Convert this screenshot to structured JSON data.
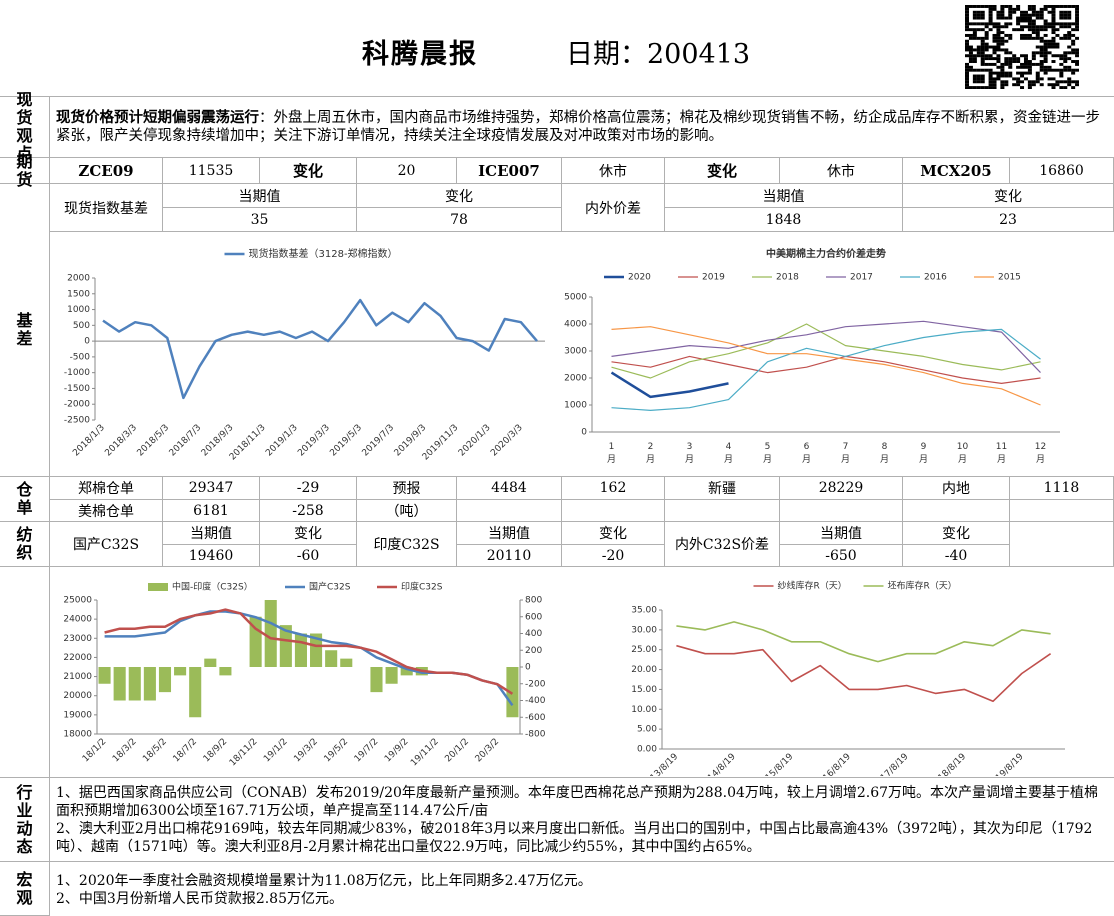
{
  "header": {
    "title": "科腾晨报",
    "date": "日期：200413"
  },
  "spot_view": {
    "label": "现货观点",
    "heading": "现货价格预计短期偏弱震荡运行",
    "text": "：外盘上周五休市，国内商品市场维持强势，郑棉价格高位震荡；棉花及棉纱现货销售不畅，纺企成品库存不断积累，资金链进一步紧张，限产关停现象持续增加中；关注下游订单情况，持续关注全球疫情发展及对冲政策对市场的影响。"
  },
  "futures": {
    "label": "期货",
    "cells": [
      "ZCE09",
      11535,
      "变化",
      20,
      "ICE007",
      "休市",
      "变化",
      "休市",
      "MCX205",
      16860
    ]
  },
  "basis_table": {
    "cells": [
      "现货指数基差",
      "当期值",
      35,
      "变化",
      78,
      "内外价差",
      "当期值",
      1848,
      "变化",
      23
    ]
  },
  "basis_label": "基差",
  "warehouse": {
    "label": "仓单",
    "rows": [
      [
        "郑棉仓单",
        29347,
        -29,
        "预报",
        4484,
        162,
        "新疆",
        28229,
        "内地",
        1118
      ],
      [
        "美棉仓单",
        6181,
        -258,
        "（吨）"
      ]
    ]
  },
  "textile": {
    "label": "纺织",
    "cells": [
      "国产C32S",
      "当期值",
      19460,
      "变化",
      -60,
      "印度C32S",
      "当期值",
      20110,
      "变化",
      -20,
      "内外C32S价差",
      "当期值",
      -650,
      "变化",
      -40
    ]
  },
  "industry": {
    "label": "行业动态",
    "paragraphs": [
      "1、据巴西国家商品供应公司（CONAB）发布2019/20年度最新产量预测。本年度巴西棉花总产预期为288.04万吨，较上月调增2.67万吨。本次产量调增主要基于植棉面积预期增加6300公顷至167.71万公顷，单产提高至114.47公斤/亩",
      "2、澳大利亚2月出口棉花9169吨，较去年同期减少83%，破2018年3月以来月度出口新低。当月出口的国别中，中国占比最高逾43%（3972吨），其次为印尼（1792吨）、越南（1571吨）等。澳大利亚8月-2月累计棉花出口量仅22.9万吨，同比减少约55%，其中中国约占65%。"
    ]
  },
  "macro": {
    "label": "宏观",
    "paragraphs": [
      "1、2020年一季度社会融资规模增量累计为11.08万亿元，比上年同期多2.47万亿元。",
      "2、中国3月份新增人民币贷款报2.85万亿元。"
    ]
  },
  "charts": [
    {
      "type": "line",
      "categories": [
        "2018/1/3",
        null,
        "2018/3/3",
        null,
        "2018/5/3",
        null,
        "2018/7/3",
        null,
        "2018/9/3",
        null,
        "2018/11/3",
        null,
        "2019/1/3",
        null,
        "2019/3/3",
        null,
        "2019/5/3",
        null,
        "2019/7/3",
        null,
        "2019/9/3",
        null,
        "2019/11/3",
        null,
        "2020/1/3",
        null,
        "2020/3/3",
        null
      ],
      "series": [
        {
          "name": "现货指数基差（3128-郑棉指数）",
          "color": "#4f81bd",
          "values": [
            650,
            300,
            600,
            500,
            100,
            -1800,
            -800,
            0,
            200,
            300,
            200,
            300,
            100,
            300,
            0,
            600,
            1300,
            500,
            900,
            600,
            1200,
            800,
            100,
            0,
            -300,
            700,
            600,
            0
          ]
        }
      ],
      "ylim": [
        -2500,
        2000
      ],
      "yticks": [
        -2500,
        -2000,
        -1500,
        -1000,
        -500,
        0,
        500,
        1000,
        1500,
        2000
      ]
    },
    {
      "type": "line",
      "title": "中美期棉主力合约价差走势",
      "categories": [
        "1月",
        "2月",
        "3月",
        "4月",
        "5月",
        "6月",
        "7月",
        "8月",
        "9月",
        "10月",
        "11月",
        "12月"
      ],
      "series": [
        {
          "name": "2020",
          "color": "#1f4e9a",
          "values": [
            2200,
            1300,
            1500,
            1800,
            null,
            null,
            null,
            null,
            null,
            null,
            null,
            null
          ]
        },
        {
          "name": "2019",
          "color": "#c0504d",
          "values": [
            2600,
            2400,
            2800,
            2500,
            2200,
            2400,
            2800,
            2600,
            2300,
            2000,
            1800,
            2000
          ]
        },
        {
          "name": "2018",
          "color": "#9bbb59",
          "values": [
            2400,
            2000,
            2600,
            2900,
            3300,
            4000,
            3200,
            3000,
            2800,
            2500,
            2300,
            2600
          ]
        },
        {
          "name": "2017",
          "color": "#8064a2",
          "values": [
            2800,
            3000,
            3200,
            3100,
            3400,
            3600,
            3900,
            4000,
            4100,
            3900,
            3700,
            2200
          ]
        },
        {
          "name": "2016",
          "color": "#4bacc6",
          "values": [
            900,
            800,
            900,
            1200,
            2600,
            3100,
            2800,
            3200,
            3500,
            3700,
            3800,
            2700
          ]
        },
        {
          "name": "2015",
          "color": "#f79646",
          "values": [
            3800,
            3900,
            3600,
            3300,
            2900,
            2900,
            2700,
            2500,
            2200,
            1800,
            1600,
            1000
          ]
        }
      ],
      "ylim": [
        0,
        5000
      ],
      "yticks": [
        0,
        1000,
        2000,
        3000,
        4000,
        5000
      ]
    },
    {
      "type": "combo",
      "categories": [
        "18/1/2",
        null,
        "18/3/2",
        null,
        "18/5/2",
        null,
        "18/7/2",
        null,
        "18/9/2",
        null,
        "18/11/2",
        null,
        "19/1/2",
        null,
        "19/3/2",
        null,
        "19/5/2",
        null,
        "19/7/2",
        null,
        "19/9/2",
        null,
        "19/11/2",
        null,
        "20/1/2",
        null,
        "20/3/2",
        null
      ],
      "series": [
        {
          "name": "中国-印度（C32S）",
          "type": "bar",
          "axis": "y2",
          "color": "#9bbb59",
          "values": [
            -200,
            -400,
            -400,
            -400,
            -300,
            -100,
            -600,
            100,
            -100,
            0,
            600,
            800,
            500,
            400,
            400,
            200,
            100,
            0,
            -300,
            -200,
            -100,
            -100,
            0,
            0,
            0,
            0,
            0,
            -600
          ]
        },
        {
          "name": "国产C32S",
          "type": "line",
          "color": "#4f81bd",
          "values": [
            23100,
            23100,
            23100,
            23200,
            23300,
            23900,
            24200,
            24400,
            24400,
            24300,
            24100,
            23800,
            23400,
            23200,
            23000,
            22800,
            22700,
            22500,
            22000,
            21700,
            21400,
            21200,
            21200,
            21200,
            21100,
            20800,
            20600,
            19500
          ]
        },
        {
          "name": "印度C32S",
          "type": "line",
          "color": "#c0504d",
          "values": [
            23300,
            23500,
            23500,
            23600,
            23600,
            24000,
            24200,
            24300,
            24500,
            24300,
            23500,
            23000,
            22900,
            22800,
            22600,
            22600,
            22600,
            22500,
            22300,
            21900,
            21500,
            21300,
            21200,
            21200,
            21100,
            20800,
            20600,
            20100
          ]
        }
      ],
      "ylim": [
        18000,
        25000
      ],
      "yticks": [
        18000,
        19000,
        20000,
        21000,
        22000,
        23000,
        24000,
        25000
      ],
      "y2lim": [
        -800,
        800
      ],
      "y2ticks": [
        -800,
        -600,
        -400,
        -200,
        0,
        200,
        400,
        600,
        800
      ]
    },
    {
      "type": "line",
      "categories": [
        "13/8/19",
        null,
        "14/8/19",
        null,
        "15/8/19",
        null,
        "16/8/19",
        null,
        "17/8/19",
        null,
        "18/8/19",
        null,
        "19/8/19",
        null
      ],
      "series": [
        {
          "name": "纱线库存R（天）",
          "color": "#c0504d",
          "values": [
            26,
            24,
            24,
            25,
            17,
            21,
            15,
            15,
            16,
            14,
            15,
            12,
            19,
            24
          ]
        },
        {
          "name": "坯布库存R（天）",
          "color": "#9bbb59",
          "values": [
            31,
            30,
            32,
            30,
            27,
            27,
            24,
            22,
            24,
            24,
            27,
            26,
            30,
            29
          ]
        }
      ],
      "ylim": [
        0,
        35
      ],
      "yticks": [
        {
          "value": 0,
          "label": "0.00"
        },
        {
          "value": 5,
          "label": "5.00"
        },
        {
          "value": 10,
          "label": "10.00"
        },
        {
          "value": 15,
          "label": "15.00"
        },
        {
          "value": 20,
          "label": "20.00"
        },
        {
          "value": 25,
          "label": "25.00"
        },
        {
          "value": 30,
          "label": "30.00"
        },
        {
          "value": 35,
          "label": "35.00"
        }
      ]
    }
  ]
}
